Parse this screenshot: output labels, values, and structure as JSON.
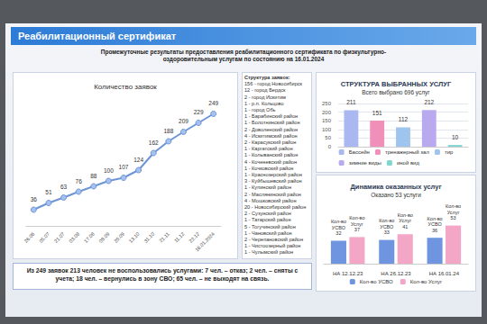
{
  "header": {
    "title": "Реабилитационный сертификат",
    "subtitle": "Промежуточные результаты предоставления реабилитационного сертификата по физкультурно-оздоровительным услугам по состоянию на 16.01.2024"
  },
  "chart_data": [
    {
      "type": "line",
      "title": "Количество заявок",
      "categories": [
        "26.06",
        "05.07",
        "21.07",
        "03.08",
        "17.08",
        "08.09",
        "29.09",
        "13.10",
        "31.10",
        "21.11",
        "11.12",
        "22.12",
        "16.01.2024"
      ],
      "values": [
        36,
        51,
        63,
        76,
        88,
        100,
        107,
        124,
        162,
        188,
        209,
        229,
        249
      ],
      "color": "#6c95d8",
      "marker": "circle",
      "data_labels": true,
      "tick_labels": "x",
      "grid": false,
      "ylim": [
        0,
        280
      ],
      "yticks": [
        0,
        70,
        140,
        210,
        280
      ]
    },
    {
      "type": "bar",
      "title": "СТРУКТУРА ВЫБРАННЫХ УСЛУГ",
      "subtitle": "Всего выбрано 696 услуг",
      "categories": [
        "Бассейн",
        "тренажерный зал",
        "тир",
        "зимние виды",
        "иной вид"
      ],
      "values": [
        211,
        151,
        112,
        212,
        10
      ],
      "colors": [
        "#a9b8f0",
        "#f08fb8",
        "#9fc4ee",
        "#b9a9ee",
        "#7fd6d0"
      ],
      "ylim": [
        0,
        250
      ],
      "yticks": [
        0,
        50,
        100,
        150,
        200,
        250
      ],
      "grid": true,
      "data_labels": true,
      "legend": "bottom",
      "tick_labels": "y"
    },
    {
      "type": "bar",
      "title": "Динамика оказанных услуг",
      "subtitle": "Оказано 53 услуги",
      "categories": [
        "НА 12.12.23",
        "НА 26.12.23",
        "НА 16.01.24"
      ],
      "series": [
        {
          "name": "Кол-во УСВО",
          "color": "#6f95e0",
          "values": [
            32,
            33,
            36
          ]
        },
        {
          "name": "Кол-во Услуг",
          "color": "#f4a6c6",
          "values": [
            37,
            41,
            53
          ]
        }
      ],
      "ylim": [
        0,
        60
      ],
      "yticks": [
        0,
        20,
        40,
        60
      ],
      "grid": false,
      "data_labels": true,
      "legend": "bottom",
      "tick_labels": "x"
    }
  ],
  "structure": {
    "title": "Структура заявок:",
    "items": [
      "156 - город Новосибирск",
      "12 - город Бердск",
      "2 - город Искитим",
      "1 - р.п. Кольцово",
      "1 - город Обь",
      "1 - Барабинский район",
      "1 - Болотнинский район",
      "2 - Доволенский район",
      "4 - Искитимский район",
      "2 - Карасукский район",
      "1 - Каргатский район",
      "1 - Колыванский район",
      "4 - Коченевский район",
      "1 - Кочковский район",
      "1 - Краснозерский район",
      "3 - Куйбышевский район",
      "1 - Купинский район",
      "2 - Маслянинский район",
      "4 - Мошковский район",
      "20 - Новосибирский район",
      "2 - Сузунский район",
      "1 - Татарский район",
      "5 - Тогучинский район",
      "1 - Чановский район",
      "2 - Черепановский район",
      "1 - Чистоозерный район",
      "1 - Чулымский район"
    ]
  },
  "note": "Из 249 заявок 213 человек не воспользовались услугами: 7 чел. – отказ; 2 чел. – сняты с учета; 18 чел. – вернулись в зону СВО; 65 чел. – не выходят на связь."
}
